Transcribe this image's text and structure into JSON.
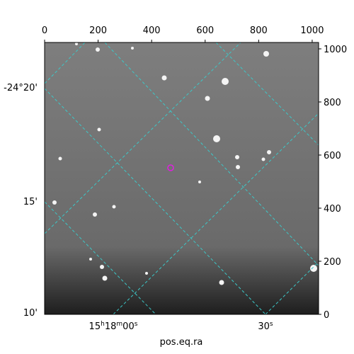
{
  "chart_data": {
    "type": "image",
    "xlabel": "pos.eq.ra",
    "xlim": [
      0,
      1024
    ],
    "ylim": [
      0,
      1024
    ],
    "xticks": [
      0,
      200,
      400,
      600,
      800,
      1000
    ],
    "yticks": [
      0,
      200,
      400,
      600,
      800,
      1000
    ],
    "ra_ticks": [
      "15h18m00s",
      "30s"
    ],
    "dec_ticks": [
      "-24°20'",
      "15'",
      "10'"
    ]
  }
}
